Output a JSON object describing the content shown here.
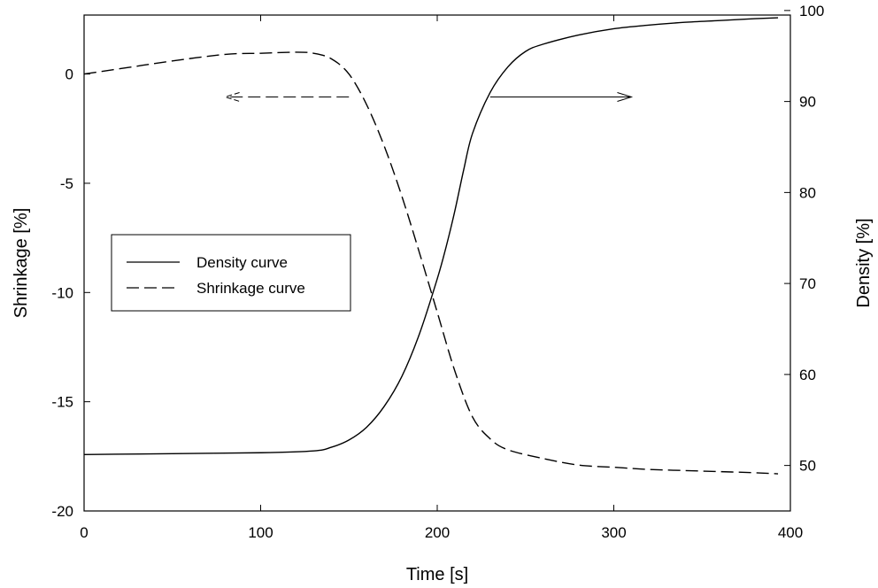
{
  "chart_data": {
    "type": "line",
    "xlabel": "Time [s]",
    "ylabel": "Shrinkage [%]",
    "y2label": "Density [%]",
    "xlim": [
      0,
      400
    ],
    "ylim": [
      -20,
      2.7
    ],
    "y2lim": [
      45,
      99.5
    ],
    "grid": false,
    "legend_position": "center-left",
    "x_ticks": [
      0,
      100,
      200,
      300,
      400
    ],
    "y_ticks": [
      -20,
      -15,
      -10,
      -5,
      0
    ],
    "y2_ticks": [
      50,
      60,
      70,
      80,
      90,
      100
    ],
    "series": [
      {
        "name": "Density curve",
        "axis": "right",
        "style": "solid",
        "color": "#000000",
        "x": [
          0,
          50,
          100,
          130,
          140,
          150,
          160,
          170,
          180,
          190,
          200,
          205,
          210,
          215,
          220,
          230,
          240,
          250,
          260,
          280,
          300,
          320,
          340,
          360,
          380,
          393
        ],
        "y": [
          51.2,
          51.3,
          51.4,
          51.6,
          52.0,
          52.8,
          54.2,
          56.5,
          59.8,
          64.5,
          70.5,
          74.0,
          78.0,
          82.5,
          86.5,
          91.0,
          93.8,
          95.5,
          96.3,
          97.3,
          98.0,
          98.4,
          98.7,
          98.9,
          99.1,
          99.2
        ]
      },
      {
        "name": "Shrinkage curve",
        "axis": "left",
        "style": "dashed",
        "color": "#000000",
        "x": [
          0,
          25,
          50,
          80,
          100,
          120,
          130,
          140,
          150,
          160,
          170,
          180,
          190,
          200,
          210,
          220,
          230,
          240,
          260,
          280,
          300,
          320,
          340,
          360,
          380,
          393
        ],
        "y": [
          0.0,
          0.3,
          0.6,
          0.9,
          0.95,
          1.0,
          0.95,
          0.7,
          0.0,
          -1.4,
          -3.3,
          -5.6,
          -8.2,
          -10.9,
          -13.6,
          -15.7,
          -16.7,
          -17.2,
          -17.6,
          -17.9,
          -18.0,
          -18.1,
          -18.15,
          -18.2,
          -18.25,
          -18.3
        ]
      }
    ],
    "annotations": [
      {
        "type": "arrow",
        "style": "dashed",
        "direction": "left",
        "from": [
          150,
          90.5
        ],
        "to": [
          80,
          90.5
        ],
        "axis": "right",
        "meaning": "shrinkage curve refers to left axis"
      },
      {
        "type": "arrow",
        "style": "solid",
        "direction": "right",
        "from": [
          230,
          90.5
        ],
        "to": [
          310,
          90.5
        ],
        "axis": "right",
        "meaning": "density curve refers to right axis"
      }
    ]
  }
}
